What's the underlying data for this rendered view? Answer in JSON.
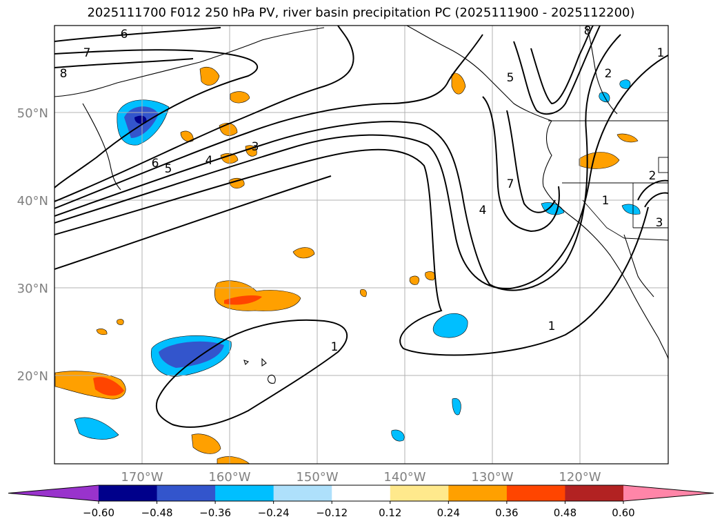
{
  "title": "2025111700 F012 250 hPa PV, river basin precipitation PC (2025111900 - 2025112200)",
  "map": {
    "lon_labels": [
      "170°W",
      "160°W",
      "150°W",
      "140°W",
      "130°W",
      "120°W"
    ],
    "lat_labels": [
      "50°N",
      "40°N",
      "30°N",
      "20°N"
    ],
    "contour_labels": [
      "6",
      "7",
      "8",
      "6",
      "5",
      "4",
      "3",
      "4",
      "5",
      "7",
      "8",
      "2",
      "1",
      "2",
      "1",
      "3",
      "1",
      "1"
    ]
  },
  "colorbar": {
    "ticks": [
      "−0.60",
      "−0.48",
      "−0.36",
      "−0.24",
      "−0.12",
      "0.12",
      "0.24",
      "0.36",
      "0.48",
      "0.60"
    ],
    "colors": [
      "#9933cc",
      "#00008b",
      "#3355cc",
      "#00bfff",
      "#aee0fb",
      "#ffffff",
      "#ffe98c",
      "#ffa000",
      "#ff4500",
      "#b22222",
      "#ff85a8"
    ]
  },
  "colors": {
    "contour": "#000000",
    "grid": "#b0b0b0",
    "axis_label": "#808080"
  }
}
